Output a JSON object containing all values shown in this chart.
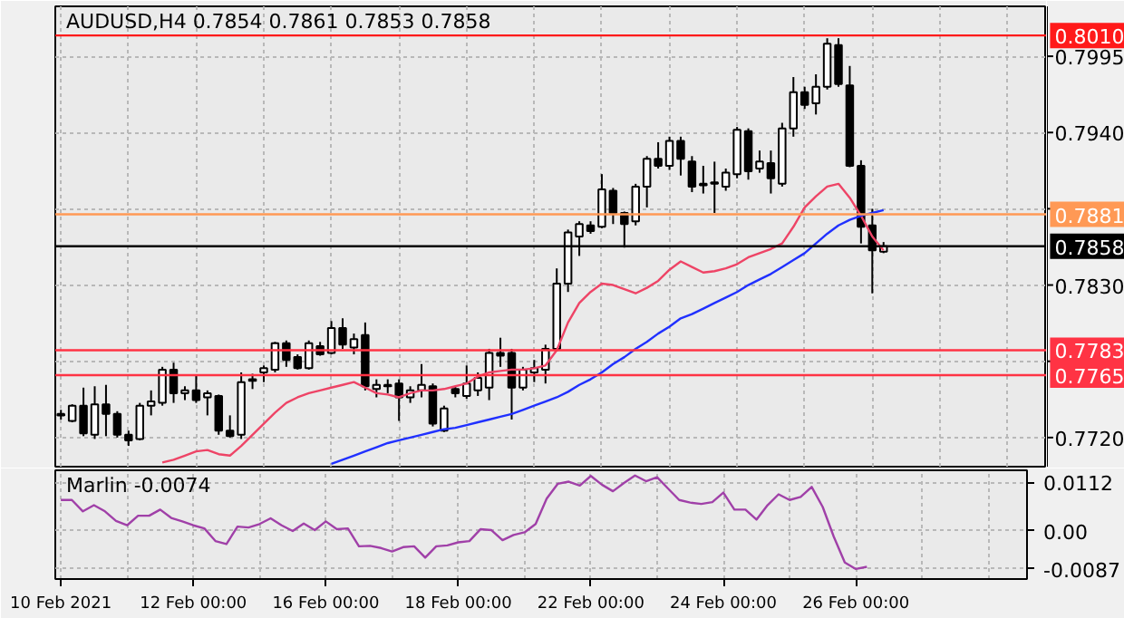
{
  "chart_data": [
    {
      "type": "candlestick",
      "title": "AUDUSD,H4 0.7854 0.7861 0.7853 0.7858",
      "tick_labels": "y",
      "grid": true,
      "categories": [
        null,
        null,
        null,
        null,
        null,
        null,
        null,
        null,
        null,
        null,
        null,
        null,
        null,
        null,
        null,
        null,
        null,
        null,
        null,
        null,
        null,
        null,
        null,
        null,
        null,
        null,
        null,
        null,
        null,
        null,
        null,
        null,
        null,
        null,
        null,
        null,
        null,
        null,
        null,
        null,
        null,
        null,
        null,
        null,
        null,
        null,
        null,
        null,
        null,
        null,
        null,
        null,
        null,
        null,
        null,
        null,
        null,
        null,
        null,
        null,
        null,
        null,
        null,
        null,
        null,
        null,
        null,
        null,
        null,
        null,
        null,
        null,
        null,
        null
      ],
      "ohlc": [
        [
          0.7736,
          0.774,
          0.7733,
          0.7737
        ],
        [
          0.7732,
          0.7744,
          0.7731,
          0.7743
        ],
        [
          0.7743,
          0.7756,
          0.7721,
          0.7723
        ],
        [
          0.7722,
          0.7757,
          0.7719,
          0.7744
        ],
        [
          0.7744,
          0.7758,
          0.7721,
          0.7737
        ],
        [
          0.7737,
          0.7739,
          0.772,
          0.7722
        ],
        [
          0.7722,
          0.7725,
          0.7714,
          0.7718
        ],
        [
          0.7719,
          0.7745,
          0.7718,
          0.7743
        ],
        [
          0.7743,
          0.7754,
          0.7736,
          0.7746
        ],
        [
          0.7745,
          0.7771,
          0.7743,
          0.7769
        ],
        [
          0.7769,
          0.7774,
          0.7745,
          0.7752
        ],
        [
          0.7752,
          0.7757,
          0.7747,
          0.7754
        ],
        [
          0.7754,
          0.7765,
          0.7745,
          0.7747
        ],
        [
          0.7749,
          0.7754,
          0.7736,
          0.7752
        ],
        [
          0.775,
          0.7751,
          0.7722,
          0.7725
        ],
        [
          0.7725,
          0.7736,
          0.772,
          0.7721
        ],
        [
          0.7722,
          0.7767,
          0.7719,
          0.776
        ],
        [
          0.7761,
          0.7766,
          0.7755,
          0.7762
        ],
        [
          0.7767,
          0.7772,
          0.776,
          0.777
        ],
        [
          0.7769,
          0.7789,
          0.7767,
          0.7788
        ],
        [
          0.7788,
          0.779,
          0.7771,
          0.7776
        ],
        [
          0.7778,
          0.778,
          0.7769,
          0.777
        ],
        [
          0.777,
          0.779,
          0.7769,
          0.7788
        ],
        [
          0.7786,
          0.7789,
          0.7779,
          0.778
        ],
        [
          0.7781,
          0.7804,
          0.778,
          0.7799
        ],
        [
          0.7799,
          0.7806,
          0.7784,
          0.7787
        ],
        [
          0.7785,
          0.7795,
          0.778,
          0.7791
        ],
        [
          0.7794,
          0.7803,
          0.7754,
          0.7757
        ],
        [
          0.7755,
          0.7762,
          0.7749,
          0.7758
        ],
        [
          0.7757,
          0.7762,
          0.7752,
          0.7758
        ],
        [
          0.7759,
          0.7762,
          0.7732,
          0.7749
        ],
        [
          0.7749,
          0.7757,
          0.7745,
          0.7754
        ],
        [
          0.7754,
          0.7773,
          0.7749,
          0.7758
        ],
        [
          0.7757,
          0.7759,
          0.7728,
          0.773
        ],
        [
          0.7725,
          0.7743,
          0.7724,
          0.7741
        ],
        [
          0.7755,
          0.7757,
          0.7749,
          0.7752
        ],
        [
          0.775,
          0.7772,
          0.7748,
          0.7759
        ],
        [
          0.7754,
          0.7767,
          0.775,
          0.7763
        ],
        [
          0.7756,
          0.7784,
          0.7747,
          0.7781
        ],
        [
          0.7781,
          0.7792,
          0.7771,
          0.7779
        ],
        [
          0.7781,
          0.7784,
          0.7733,
          0.7756
        ],
        [
          0.7756,
          0.7771,
          0.7754,
          0.7769
        ],
        [
          0.7767,
          0.7776,
          0.776,
          0.777
        ],
        [
          0.7769,
          0.7787,
          0.7759,
          0.7784
        ],
        [
          0.7784,
          0.7842,
          0.7782,
          0.7831
        ],
        [
          0.7831,
          0.787,
          0.7825,
          0.7868
        ],
        [
          0.7865,
          0.7876,
          0.7851,
          0.7874
        ],
        [
          0.7873,
          0.7876,
          0.7867,
          0.7869
        ],
        [
          0.7872,
          0.791,
          0.7871,
          0.7899
        ],
        [
          0.7898,
          0.79,
          0.7874,
          0.7882
        ],
        [
          0.7882,
          0.7883,
          0.7857,
          0.7874
        ],
        [
          0.7876,
          0.7903,
          0.7873,
          0.7901
        ],
        [
          0.7901,
          0.7923,
          0.7886,
          0.7921
        ],
        [
          0.7921,
          0.7933,
          0.7914,
          0.7916
        ],
        [
          0.7916,
          0.7937,
          0.7913,
          0.7934
        ],
        [
          0.7934,
          0.7937,
          0.7909,
          0.7921
        ],
        [
          0.7919,
          0.7923,
          0.7897,
          0.7901
        ],
        [
          0.7902,
          0.7916,
          0.7896,
          0.7903
        ],
        [
          0.7903,
          0.7919,
          0.7882,
          0.7904
        ],
        [
          0.7901,
          0.7914,
          0.7898,
          0.7911
        ],
        [
          0.791,
          0.7944,
          0.7907,
          0.7942
        ],
        [
          0.7941,
          0.7943,
          0.7906,
          0.7912
        ],
        [
          0.7914,
          0.7927,
          0.7911,
          0.7919
        ],
        [
          0.7918,
          0.7927,
          0.7896,
          0.7907
        ],
        [
          0.7903,
          0.7947,
          0.7901,
          0.7943
        ],
        [
          0.7943,
          0.798,
          0.7937,
          0.7969
        ],
        [
          0.7969,
          0.7973,
          0.7957,
          0.796
        ],
        [
          0.7961,
          0.7982,
          0.7953,
          0.7973
        ],
        [
          0.7973,
          0.8008,
          0.7971,
          0.8004
        ],
        [
          0.8003,
          0.8008,
          0.7973,
          0.7975
        ],
        [
          0.7974,
          0.7988,
          0.7915,
          0.7916
        ],
        [
          0.7916,
          0.792,
          0.786,
          0.7872
        ],
        [
          0.7873,
          0.7885,
          0.7824,
          0.7855
        ],
        [
          0.7854,
          0.7861,
          0.7853,
          0.7858
        ]
      ],
      "series": [
        {
          "type": "line",
          "color": "#ee4466",
          "values": [
            null,
            null,
            null,
            null,
            null,
            null,
            null,
            null,
            null,
            0.7702,
            0.7704,
            0.7707,
            0.771,
            0.7711,
            0.7708,
            0.7707,
            0.7714,
            0.7722,
            0.773,
            0.7738,
            0.7745,
            0.7749,
            0.7752,
            0.7754,
            0.7756,
            0.7758,
            0.776,
            0.7756,
            0.7752,
            0.7751,
            0.7749,
            0.7752,
            0.7754,
            0.7754,
            0.7755,
            0.7757,
            0.7759,
            0.7764,
            0.7767,
            0.7768,
            0.7769,
            0.7769,
            0.777,
            0.7772,
            0.7783,
            0.7803,
            0.7817,
            0.7825,
            0.7831,
            0.783,
            0.7827,
            0.7824,
            0.7828,
            0.7833,
            0.7841,
            0.7847,
            0.7843,
            0.7839,
            0.784,
            0.7842,
            0.7845,
            0.785,
            0.7853,
            0.7856,
            0.786,
            0.7872,
            0.7886,
            0.7894,
            0.7901,
            0.7903,
            0.7893,
            0.788,
            0.7865,
            0.7855
          ]
        },
        {
          "type": "line",
          "color": "#2030ff",
          "values": [
            null,
            null,
            null,
            null,
            null,
            null,
            null,
            null,
            null,
            null,
            null,
            null,
            null,
            null,
            null,
            null,
            null,
            null,
            null,
            null,
            null,
            null,
            null,
            null,
            0.7701,
            0.7704,
            0.7707,
            0.771,
            0.7713,
            0.7716,
            0.7718,
            0.772,
            0.7722,
            0.7724,
            0.7726,
            0.7727,
            0.7729,
            0.7731,
            0.7733,
            0.7735,
            0.7737,
            0.774,
            0.7743,
            0.7746,
            0.7749,
            0.7753,
            0.7758,
            0.7762,
            0.7767,
            0.7773,
            0.7778,
            0.7784,
            0.7789,
            0.7795,
            0.78,
            0.7806,
            0.7809,
            0.7813,
            0.7817,
            0.7821,
            0.7825,
            0.783,
            0.7834,
            0.7838,
            0.7843,
            0.7848,
            0.7853,
            0.786,
            0.7867,
            0.7873,
            0.7877,
            0.788,
            0.7882,
            0.7884
          ]
        }
      ],
      "ylim": [
        0.7699,
        0.8031
      ],
      "yticks": [
        {
          "value": 0.7995,
          "label": "0.7995"
        },
        {
          "value": 0.794,
          "label": "0.7940"
        },
        {
          "value": 0.7885,
          "label": null
        },
        {
          "value": 0.783,
          "label": "0.7830"
        },
        {
          "value": 0.7775,
          "label": null
        },
        {
          "value": 0.772,
          "label": "0.7720"
        }
      ],
      "ref_lines": [
        {
          "axis": "y",
          "value": 0.801,
          "label": "0.8010",
          "color": "#ff1a1a"
        },
        {
          "axis": "y",
          "value": 0.7881,
          "label": "0.7881",
          "color": "#ff9955"
        },
        {
          "axis": "y",
          "value": 0.7858,
          "label": "0.7858",
          "color": "#000000"
        },
        {
          "axis": "y",
          "value": 0.7783,
          "label": "0.7783",
          "color": "#ff3344"
        },
        {
          "axis": "y",
          "value": 0.7765,
          "label": "0.7765",
          "color": "#ff3344"
        }
      ]
    },
    {
      "type": "line",
      "title": "Marlin -0.0074",
      "grid": true,
      "categories": [
        "10 Feb 2021",
        null,
        null,
        null,
        null,
        null,
        null,
        null,
        null,
        null,
        null,
        null,
        "12 Feb 00:00",
        null,
        null,
        null,
        null,
        null,
        null,
        null,
        null,
        null,
        null,
        null,
        "16 Feb 00:00",
        null,
        null,
        null,
        null,
        null,
        null,
        null,
        null,
        null,
        null,
        null,
        "18 Feb 00:00",
        null,
        null,
        null,
        null,
        null,
        null,
        null,
        null,
        null,
        null,
        null,
        "22 Feb 00:00",
        null,
        null,
        null,
        null,
        null,
        null,
        null,
        null,
        null,
        null,
        null,
        "24 Feb 00:00",
        null,
        null,
        null,
        null,
        null,
        null,
        null,
        null,
        null,
        null,
        null,
        "26 Feb 00:00",
        null
      ],
      "series": [
        {
          "color": "#a040a8",
          "values": [
            0.0071,
            0.0071,
            0.0045,
            0.0059,
            0.0045,
            0.0023,
            0.0013,
            0.0035,
            0.0035,
            0.0049,
            0.003,
            0.0022,
            0.0013,
            0.0006,
            -0.0023,
            -0.003,
            0.001,
            0.0008,
            0.0016,
            0.0029,
            0.0013,
            0.0,
            0.0017,
            0.0002,
            0.0022,
            0.0004,
            0.0006,
            -0.0035,
            -0.0034,
            -0.0039,
            -0.0047,
            -0.0037,
            -0.0035,
            -0.0061,
            -0.0035,
            -0.0033,
            -0.0026,
            -0.0023,
            0.0004,
            0.0002,
            -0.0021,
            -0.0009,
            -0.0003,
            0.0016,
            0.0074,
            0.0108,
            0.0113,
            0.0104,
            0.0126,
            0.0106,
            0.0091,
            0.011,
            0.0127,
            0.0114,
            0.0123,
            0.0097,
            0.0071,
            0.0065,
            0.0062,
            0.0066,
            0.0088,
            0.0049,
            0.0049,
            0.0026,
            0.0059,
            0.0084,
            0.0071,
            0.0078,
            0.0101,
            0.0055,
            -0.0013,
            -0.0072,
            -0.0087,
            -0.0082
          ]
        }
      ],
      "ylim": [
        -0.011,
        0.0139
      ],
      "yticks": [
        0.0112,
        {
          "value": 0,
          "label": "0.00"
        },
        -0.0087
      ]
    }
  ]
}
